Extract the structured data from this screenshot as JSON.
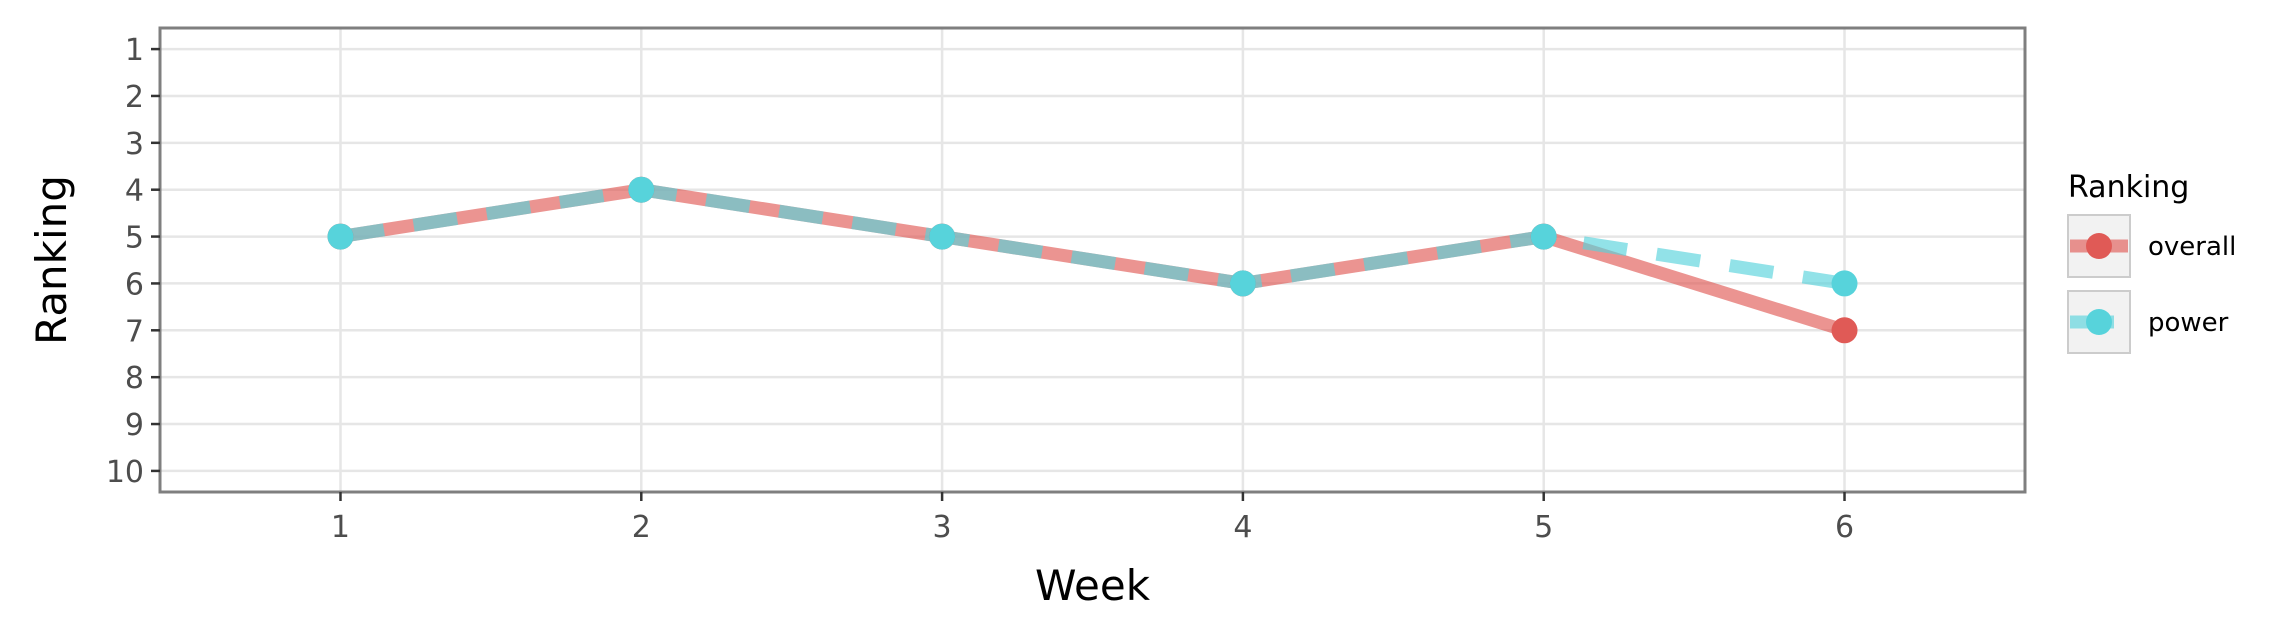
{
  "chart_data": {
    "type": "line",
    "xlabel": "Week",
    "ylabel": "Ranking",
    "x": [
      1,
      2,
      3,
      4,
      5,
      6
    ],
    "x_ticks": [
      "1",
      "2",
      "3",
      "4",
      "5",
      "6"
    ],
    "xlim": [
      0.4,
      6.6
    ],
    "y_ticks": [
      "1",
      "2",
      "3",
      "4",
      "5",
      "6",
      "7",
      "8",
      "9",
      "10"
    ],
    "ylim": [
      10.45,
      0.55
    ],
    "y_reversed": true,
    "grid": true,
    "legend": {
      "title": "Ranking",
      "placement": "right"
    },
    "series": [
      {
        "name": "overall",
        "values": [
          5,
          4,
          5,
          6,
          5,
          7
        ],
        "color": "#e05a56",
        "line_style": "solid"
      },
      {
        "name": "power",
        "values": [
          5,
          4,
          5,
          6,
          5,
          6
        ],
        "color": "#57d3db",
        "line_style": "dashed"
      }
    ],
    "colors": {
      "panel_border": "#7f7f7f",
      "grid": "#e6e6e6",
      "legend_key_bg": "#f2f2f2",
      "legend_key_border": "#cccccc"
    }
  }
}
